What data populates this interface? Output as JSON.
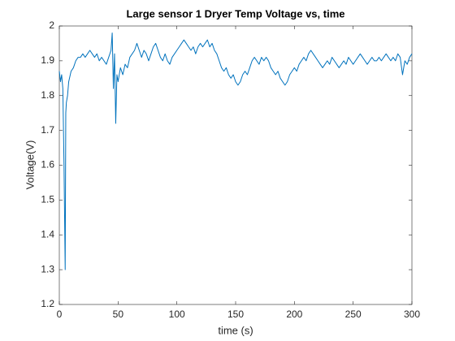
{
  "chart_data": {
    "type": "line",
    "title": "Large sensor 1 Dryer Temp Voltage vs, time",
    "x_label": "time (s)",
    "y_label": "Voltage(V)",
    "color": "#0072bd",
    "xlim": [
      0,
      300
    ],
    "xticks": [
      0,
      50,
      100,
      150,
      200,
      250,
      300
    ],
    "ylim": [
      1.2,
      2
    ],
    "yticks": [
      1.2,
      1.3,
      1.4,
      1.5,
      1.6,
      1.7,
      1.8,
      1.9,
      2
    ],
    "x": [
      0,
      1,
      2,
      3,
      4,
      5,
      5.5,
      6,
      7,
      8,
      10,
      12,
      14,
      16,
      18,
      20,
      22,
      24,
      26,
      28,
      30,
      32,
      34,
      36,
      38,
      40,
      42,
      44,
      45,
      46,
      47,
      48,
      49,
      50,
      52,
      54,
      56,
      58,
      60,
      62,
      64,
      66,
      68,
      70,
      72,
      74,
      76,
      78,
      80,
      82,
      84,
      86,
      88,
      90,
      92,
      94,
      96,
      98,
      100,
      102,
      104,
      106,
      108,
      110,
      112,
      114,
      116,
      118,
      120,
      122,
      124,
      126,
      128,
      130,
      132,
      134,
      136,
      138,
      140,
      142,
      144,
      146,
      148,
      150,
      152,
      154,
      156,
      158,
      160,
      162,
      164,
      166,
      168,
      170,
      172,
      174,
      176,
      178,
      180,
      182,
      184,
      186,
      188,
      190,
      192,
      194,
      196,
      198,
      200,
      202,
      204,
      206,
      208,
      210,
      212,
      214,
      216,
      218,
      220,
      222,
      224,
      226,
      228,
      230,
      232,
      234,
      236,
      238,
      240,
      242,
      244,
      246,
      248,
      250,
      252,
      254,
      256,
      258,
      260,
      262,
      264,
      266,
      268,
      270,
      272,
      274,
      276,
      278,
      280,
      282,
      284,
      286,
      288,
      290,
      292,
      294,
      296,
      298,
      300
    ],
    "values": [
      1.87,
      1.84,
      1.86,
      1.82,
      1.6,
      1.3,
      1.75,
      1.78,
      1.8,
      1.84,
      1.87,
      1.88,
      1.9,
      1.91,
      1.91,
      1.92,
      1.91,
      1.92,
      1.93,
      1.92,
      1.91,
      1.92,
      1.9,
      1.91,
      1.9,
      1.89,
      1.91,
      1.93,
      1.98,
      1.82,
      1.92,
      1.72,
      1.86,
      1.84,
      1.88,
      1.86,
      1.89,
      1.88,
      1.91,
      1.92,
      1.93,
      1.95,
      1.93,
      1.91,
      1.93,
      1.92,
      1.9,
      1.92,
      1.94,
      1.95,
      1.93,
      1.91,
      1.9,
      1.92,
      1.9,
      1.89,
      1.91,
      1.92,
      1.93,
      1.94,
      1.95,
      1.96,
      1.95,
      1.94,
      1.93,
      1.94,
      1.92,
      1.94,
      1.95,
      1.94,
      1.95,
      1.96,
      1.94,
      1.95,
      1.93,
      1.92,
      1.9,
      1.88,
      1.87,
      1.88,
      1.86,
      1.85,
      1.86,
      1.84,
      1.83,
      1.84,
      1.86,
      1.87,
      1.86,
      1.88,
      1.9,
      1.91,
      1.9,
      1.89,
      1.91,
      1.9,
      1.91,
      1.9,
      1.88,
      1.87,
      1.86,
      1.87,
      1.85,
      1.84,
      1.83,
      1.84,
      1.86,
      1.87,
      1.88,
      1.87,
      1.89,
      1.9,
      1.91,
      1.9,
      1.92,
      1.93,
      1.92,
      1.91,
      1.9,
      1.89,
      1.88,
      1.89,
      1.9,
      1.89,
      1.91,
      1.9,
      1.89,
      1.88,
      1.89,
      1.9,
      1.89,
      1.91,
      1.9,
      1.89,
      1.9,
      1.91,
      1.92,
      1.91,
      1.9,
      1.89,
      1.9,
      1.91,
      1.9,
      1.9,
      1.91,
      1.9,
      1.91,
      1.92,
      1.91,
      1.9,
      1.91,
      1.9,
      1.92,
      1.91,
      1.86,
      1.9,
      1.89,
      1.91,
      1.92
    ]
  }
}
